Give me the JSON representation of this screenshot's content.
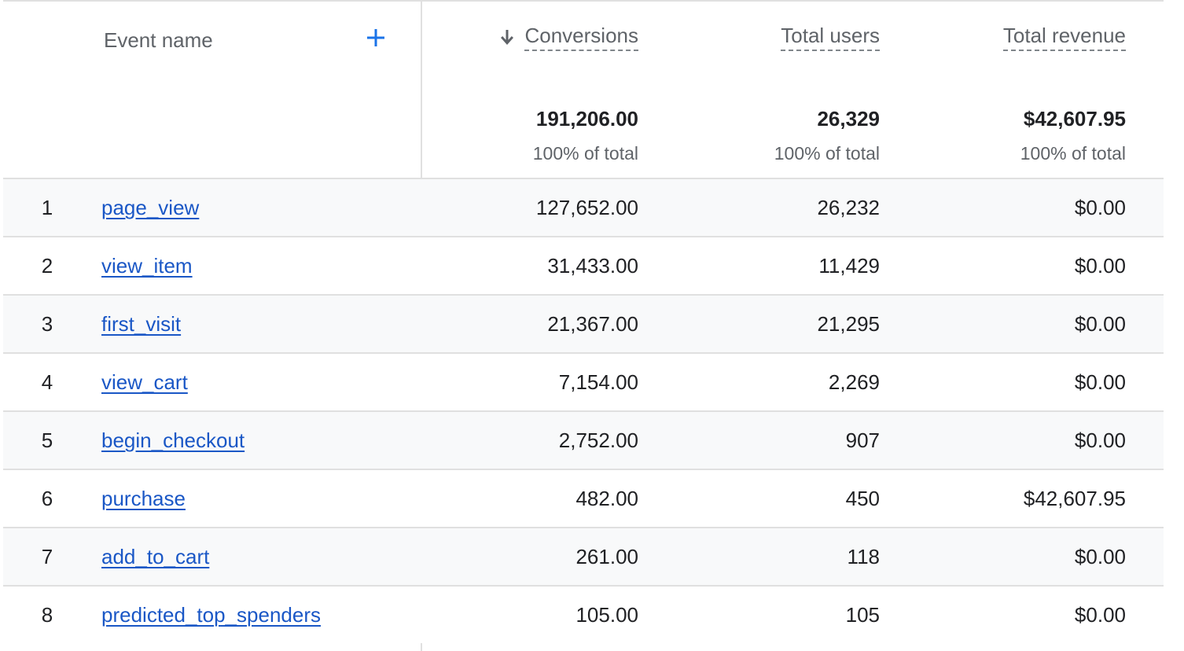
{
  "header": {
    "event_name": "Event name",
    "add_icon": "plus-icon",
    "sort_icon": "arrow-down-icon",
    "metrics": {
      "conversions": "Conversions",
      "total_users": "Total users",
      "total_revenue": "Total revenue"
    }
  },
  "totals": {
    "conversions": "191,206.00",
    "total_users": "26,329",
    "total_revenue": "$42,607.95",
    "conversions_pct": "100% of total",
    "total_users_pct": "100% of total",
    "total_revenue_pct": "100% of total"
  },
  "rows": [
    {
      "rank": "1",
      "event": "page_view",
      "conversions": "127,652.00",
      "users": "26,232",
      "revenue": "$0.00"
    },
    {
      "rank": "2",
      "event": "view_item",
      "conversions": "31,433.00",
      "users": "11,429",
      "revenue": "$0.00"
    },
    {
      "rank": "3",
      "event": "first_visit",
      "conversions": "21,367.00",
      "users": "21,295",
      "revenue": "$0.00"
    },
    {
      "rank": "4",
      "event": "view_cart",
      "conversions": "7,154.00",
      "users": "2,269",
      "revenue": "$0.00"
    },
    {
      "rank": "5",
      "event": "begin_checkout",
      "conversions": "2,752.00",
      "users": "907",
      "revenue": "$0.00"
    },
    {
      "rank": "6",
      "event": "purchase",
      "conversions": "482.00",
      "users": "450",
      "revenue": "$42,607.95"
    },
    {
      "rank": "7",
      "event": "add_to_cart",
      "conversions": "261.00",
      "users": "118",
      "revenue": "$0.00"
    },
    {
      "rank": "8",
      "event": "predicted_top_spenders",
      "conversions": "105.00",
      "users": "105",
      "revenue": "$0.00"
    }
  ],
  "colors": {
    "link": "#1a57c6",
    "accent": "#1a73e8",
    "border": "#e0e0e0",
    "row_shade": "#f8f9fa",
    "secondary_text": "#5f6368"
  }
}
